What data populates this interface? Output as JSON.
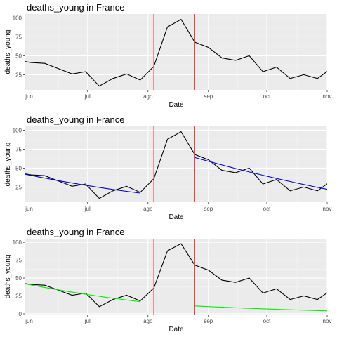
{
  "colors": {
    "panel_bg": "#ebebeb",
    "grid_major": "#ffffff",
    "data_line": "#000000",
    "vline": "#ee3b2f",
    "fit_blue": "#0000ee",
    "fit_green": "#00ee00"
  },
  "chart_data": [
    {
      "type": "line",
      "title": "deaths_young in France",
      "xlabel": "Date",
      "ylabel": "deaths_young",
      "x_ticks": [
        "jun",
        "jul",
        "ago",
        "sep",
        "oct",
        "nov"
      ],
      "y_ticks": [
        "25",
        "50",
        "75",
        "100"
      ],
      "xlim": [
        -2,
        153
      ],
      "ylim": [
        5,
        105
      ],
      "grid": true,
      "x_tick_values": [
        0,
        30,
        61,
        92,
        122,
        153
      ],
      "series": [
        {
          "x": [
            -6,
            1,
            8,
            15,
            22,
            29,
            36,
            43,
            50,
            57,
            64,
            71,
            78,
            85,
            92,
            99,
            106,
            113,
            120,
            127,
            134,
            141,
            148,
            155
          ],
          "values": [
            44,
            41,
            40,
            33,
            26,
            29,
            10,
            20,
            26,
            18,
            36,
            88,
            98,
            68,
            61,
            47,
            44,
            50,
            29,
            35,
            20,
            25,
            20,
            33
          ]
        }
      ],
      "vlines_x": [
        64,
        85
      ],
      "fits": []
    },
    {
      "type": "line",
      "title": "deaths_young in France",
      "xlabel": "Date",
      "ylabel": "deaths_young",
      "x_ticks": [
        "jun",
        "jul",
        "ago",
        "sep",
        "oct",
        "nov"
      ],
      "y_ticks": [
        "25",
        "50",
        "75",
        "100"
      ],
      "xlim": [
        -2,
        153
      ],
      "ylim": [
        5,
        105
      ],
      "grid": true,
      "x_tick_values": [
        0,
        30,
        61,
        92,
        122,
        153
      ],
      "series": [
        {
          "x": [
            -6,
            1,
            8,
            15,
            22,
            29,
            36,
            43,
            50,
            57,
            64,
            71,
            78,
            85,
            92,
            99,
            106,
            113,
            120,
            127,
            134,
            141,
            148,
            155
          ],
          "values": [
            44,
            41,
            40,
            33,
            26,
            29,
            10,
            20,
            26,
            18,
            36,
            88,
            98,
            68,
            61,
            47,
            44,
            50,
            29,
            35,
            20,
            25,
            20,
            33
          ]
        }
      ],
      "vlines_x": [
        64,
        85
      ],
      "fits": [
        {
          "color": "blue",
          "x": [
            -6,
            57
          ],
          "values": [
            44,
            17
          ],
          "curve": 0.25
        },
        {
          "color": "blue",
          "x": [
            85,
            155
          ],
          "values": [
            64,
            21
          ],
          "curve": 0.18
        }
      ]
    },
    {
      "type": "line",
      "title": "deaths_young in France",
      "xlabel": "Date",
      "ylabel": "deaths_young",
      "x_ticks": [
        "jun",
        "jul",
        "ago",
        "sep",
        "oct",
        "nov"
      ],
      "y_ticks": [
        "0",
        "25",
        "50",
        "75",
        "100"
      ],
      "xlim": [
        -2,
        153
      ],
      "ylim": [
        -1,
        105
      ],
      "grid": true,
      "x_tick_values": [
        0,
        30,
        61,
        92,
        122,
        153
      ],
      "series": [
        {
          "x": [
            -6,
            1,
            8,
            15,
            22,
            29,
            36,
            43,
            50,
            57,
            64,
            71,
            78,
            85,
            92,
            99,
            106,
            113,
            120,
            127,
            134,
            141,
            148,
            155
          ],
          "values": [
            44,
            41,
            40,
            33,
            26,
            29,
            10,
            20,
            26,
            18,
            36,
            88,
            98,
            68,
            61,
            47,
            44,
            50,
            29,
            35,
            20,
            25,
            20,
            33
          ]
        }
      ],
      "vlines_x": [
        64,
        85
      ],
      "fits": [
        {
          "color": "green",
          "x": [
            -6,
            57
          ],
          "values": [
            44,
            17
          ],
          "curve": 0.25
        },
        {
          "color": "green",
          "x": [
            85,
            155
          ],
          "values": [
            11,
            4
          ],
          "curve": 0.3
        }
      ]
    }
  ]
}
